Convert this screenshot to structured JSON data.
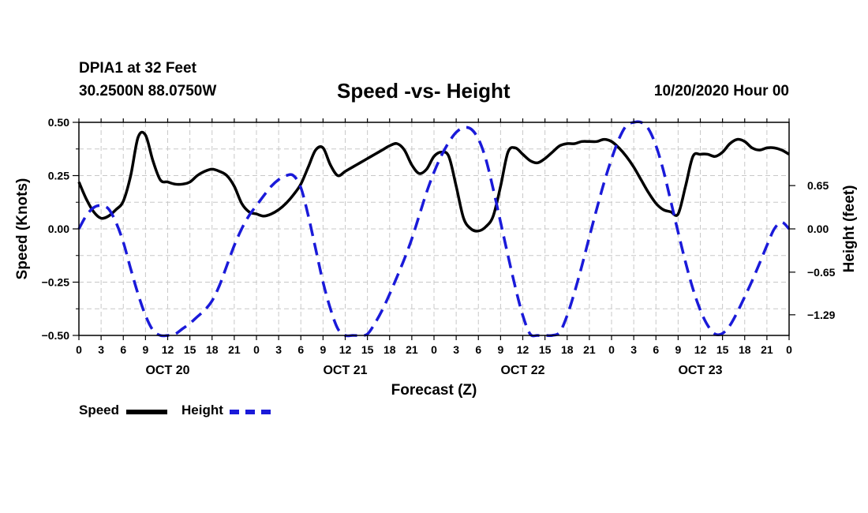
{
  "header": {
    "station": "DPIA1 at 32 Feet",
    "coords": "30.2500N 88.0750W",
    "title": "Speed -vs- Height",
    "datetime": "10/20/2020 Hour 00"
  },
  "legend": {
    "speed_label": "Speed",
    "height_label": "Height"
  },
  "colors": {
    "speed": "#000000",
    "height": "#1a1ad9",
    "grid": "#c8c8c8"
  },
  "chart_data": {
    "type": "line",
    "title": "Speed -vs- Height",
    "xlabel": "Forecast (Z)",
    "ylabel": "Speed (Knots)",
    "y2label": "Height (feet)",
    "xlim": [
      0,
      96
    ],
    "ylim": [
      -0.5,
      0.5
    ],
    "y2lim": [
      -1.6,
      1.6
    ],
    "grid": true,
    "legend_position": "bottom-left",
    "x_tick_values": [
      0,
      3,
      6,
      9,
      12,
      15,
      18,
      21,
      24,
      27,
      30,
      33,
      36,
      39,
      42,
      45,
      48,
      51,
      54,
      57,
      60,
      63,
      66,
      69,
      72,
      75,
      78,
      81,
      84,
      87,
      90,
      93,
      96
    ],
    "x_tick_labels": [
      "0",
      "3",
      "6",
      "9",
      "12",
      "15",
      "18",
      "21",
      "0",
      "3",
      "6",
      "9",
      "12",
      "15",
      "18",
      "21",
      "0",
      "3",
      "6",
      "9",
      "12",
      "15",
      "18",
      "21",
      "0",
      "3",
      "6",
      "9",
      "12",
      "15",
      "18",
      "21",
      "0"
    ],
    "day_labels": [
      {
        "x": 12,
        "label": "OCT 20"
      },
      {
        "x": 36,
        "label": "OCT 21"
      },
      {
        "x": 60,
        "label": "OCT 22"
      },
      {
        "x": 84,
        "label": "OCT 23"
      }
    ],
    "y_ticks": [
      -0.5,
      -0.25,
      0.0,
      0.25,
      0.5
    ],
    "y_tick_labels": [
      "−0.50",
      "−0.25",
      "0.00",
      "0.25",
      "0.50"
    ],
    "y2_ticks": [
      -1.29,
      -0.65,
      0.0,
      0.65
    ],
    "y2_tick_labels": [
      "−1.29",
      "−0.65",
      "0.00",
      "0.65"
    ],
    "series": [
      {
        "name": "Speed",
        "axis": "left",
        "style": "solid",
        "x": [
          0,
          1,
          2,
          3,
          4,
          5,
          6,
          7,
          8,
          9,
          10,
          11,
          12,
          13,
          14,
          15,
          16,
          17,
          18,
          19,
          20,
          21,
          22,
          23,
          24,
          25,
          26,
          27,
          28,
          29,
          30,
          31,
          32,
          33,
          34,
          35,
          36,
          37,
          38,
          39,
          40,
          41,
          42,
          43,
          44,
          45,
          46,
          47,
          48,
          49,
          50,
          51,
          52,
          53,
          54,
          55,
          56,
          57,
          58,
          59,
          60,
          61,
          62,
          63,
          64,
          65,
          66,
          67,
          68,
          69,
          70,
          71,
          72,
          73,
          74,
          75,
          76,
          77,
          78,
          79,
          80,
          81,
          82,
          83,
          84,
          85,
          86,
          87,
          88,
          89,
          90,
          91,
          92,
          93,
          94,
          95,
          96
        ],
        "values": [
          0.22,
          0.14,
          0.08,
          0.05,
          0.06,
          0.09,
          0.13,
          0.25,
          0.43,
          0.44,
          0.32,
          0.23,
          0.22,
          0.21,
          0.21,
          0.22,
          0.25,
          0.27,
          0.28,
          0.27,
          0.25,
          0.2,
          0.12,
          0.08,
          0.07,
          0.06,
          0.07,
          0.09,
          0.12,
          0.16,
          0.21,
          0.29,
          0.37,
          0.38,
          0.3,
          0.25,
          0.27,
          0.29,
          0.31,
          0.33,
          0.35,
          0.37,
          0.39,
          0.4,
          0.37,
          0.3,
          0.26,
          0.28,
          0.34,
          0.36,
          0.34,
          0.2,
          0.05,
          0.0,
          -0.01,
          0.01,
          0.06,
          0.2,
          0.36,
          0.38,
          0.35,
          0.32,
          0.31,
          0.33,
          0.36,
          0.39,
          0.4,
          0.4,
          0.41,
          0.41,
          0.41,
          0.42,
          0.41,
          0.38,
          0.34,
          0.29,
          0.23,
          0.17,
          0.12,
          0.09,
          0.08,
          0.07,
          0.2,
          0.34,
          0.35,
          0.35,
          0.34,
          0.36,
          0.4,
          0.42,
          0.41,
          0.38,
          0.37,
          0.38,
          0.38,
          0.37,
          0.35
        ]
      },
      {
        "name": "Height",
        "axis": "right",
        "style": "dashed",
        "x": [
          0,
          1,
          2,
          3,
          4,
          5,
          6,
          7,
          8,
          9,
          10,
          11,
          12,
          13,
          14,
          15,
          16,
          17,
          18,
          19,
          20,
          21,
          22,
          23,
          24,
          25,
          26,
          27,
          28,
          29,
          30,
          31,
          32,
          33,
          34,
          35,
          36,
          37,
          38,
          39,
          40,
          41,
          42,
          43,
          44,
          45,
          46,
          47,
          48,
          49,
          50,
          51,
          52,
          53,
          54,
          55,
          56,
          57,
          58,
          59,
          60,
          61,
          62,
          63,
          64,
          65,
          66,
          67,
          68,
          69,
          70,
          71,
          72,
          73,
          74,
          75,
          76,
          77,
          78,
          79,
          80,
          81,
          82,
          83,
          84,
          85,
          86,
          87,
          88,
          89,
          90,
          91,
          92,
          93,
          94,
          95,
          96
        ],
        "values": [
          0.0,
          0.2,
          0.32,
          0.35,
          0.3,
          0.1,
          -0.2,
          -0.6,
          -0.98,
          -1.3,
          -1.52,
          -1.64,
          -1.65,
          -1.58,
          -1.5,
          -1.42,
          -1.32,
          -1.22,
          -1.08,
          -0.85,
          -0.55,
          -0.25,
          0.0,
          0.2,
          0.35,
          0.5,
          0.64,
          0.74,
          0.8,
          0.8,
          0.62,
          0.2,
          -0.3,
          -0.8,
          -1.2,
          -1.5,
          -1.67,
          -1.73,
          -1.68,
          -1.58,
          -1.42,
          -1.22,
          -0.98,
          -0.72,
          -0.45,
          -0.15,
          0.2,
          0.55,
          0.85,
          1.1,
          1.3,
          1.45,
          1.52,
          1.5,
          1.35,
          1.05,
          0.6,
          0.1,
          -0.4,
          -0.88,
          -1.3,
          -1.58,
          -1.72,
          -1.76,
          -1.7,
          -1.55,
          -1.3,
          -0.95,
          -0.55,
          -0.12,
          0.3,
          0.7,
          1.05,
          1.35,
          1.55,
          1.65,
          1.63,
          1.5,
          1.25,
          0.88,
          0.42,
          -0.05,
          -0.5,
          -0.9,
          -1.22,
          -1.45,
          -1.58,
          -1.57,
          -1.45,
          -1.25,
          -1.02,
          -0.78,
          -0.52,
          -0.25,
          0.0,
          0.1,
          0.0
        ]
      }
    ]
  }
}
